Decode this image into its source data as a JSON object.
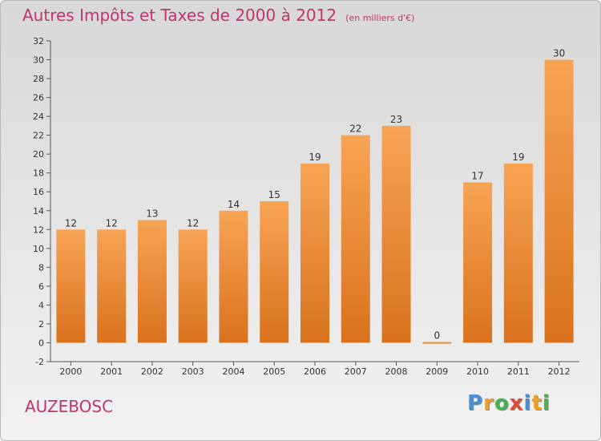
{
  "chart_data": {
    "type": "bar",
    "title": "Autres Impôts et Taxes de 2000 à 2012",
    "unit": "(en milliers d'€)",
    "categories": [
      "2000",
      "2001",
      "2002",
      "2003",
      "2004",
      "2005",
      "2006",
      "2007",
      "2008",
      "2009",
      "2010",
      "2011",
      "2012"
    ],
    "values": [
      12,
      12,
      13,
      12,
      14,
      15,
      19,
      22,
      23,
      0,
      17,
      19,
      30
    ],
    "ylim": [
      -2,
      32
    ],
    "yticks": [
      -2,
      0,
      2,
      4,
      6,
      8,
      10,
      12,
      14,
      16,
      18,
      20,
      22,
      24,
      26,
      28,
      30,
      32
    ],
    "grid": false,
    "bar_color_top": "#f7a455",
    "bar_color_bottom": "#d9721d"
  },
  "commune": "AUZEBOSC",
  "logo": {
    "letters": [
      "P",
      "r",
      "o",
      "x",
      "i",
      "t",
      "i"
    ],
    "colors": [
      "#4a8fd6",
      "#f0a020",
      "#4caf50",
      "#e04a3a",
      "#4a8fd6",
      "#f0a020",
      "#4caf50"
    ]
  }
}
